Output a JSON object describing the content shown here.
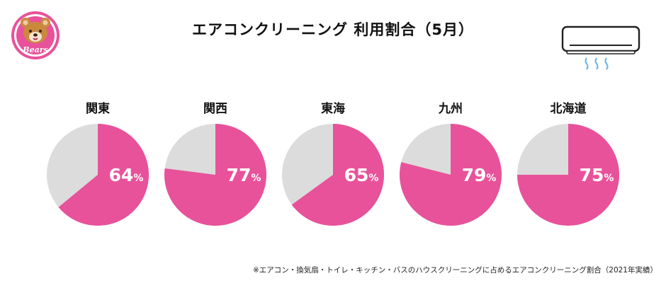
{
  "logo": {
    "text": "Bears",
    "icon": "bear-face-icon"
  },
  "aircon_icon": "air-conditioner-icon",
  "colors": {
    "accent": "#e8529a",
    "rest": "#dcdcdc"
  },
  "chart_data": {
    "type": "pie",
    "title": "エアコンクリーニング 利用割合（5月）",
    "unit": "%",
    "series": [
      {
        "name": "関東",
        "value": 64
      },
      {
        "name": "関西",
        "value": 77
      },
      {
        "name": "東海",
        "value": 65
      },
      {
        "name": "九州",
        "value": 79
      },
      {
        "name": "北海道",
        "value": 75
      }
    ]
  },
  "footnote": "※エアコン・換気扇・トイレ・キッチン・バスのハウスクリーニングに占めるエアコンクリーニング割合（2021年実績）"
}
